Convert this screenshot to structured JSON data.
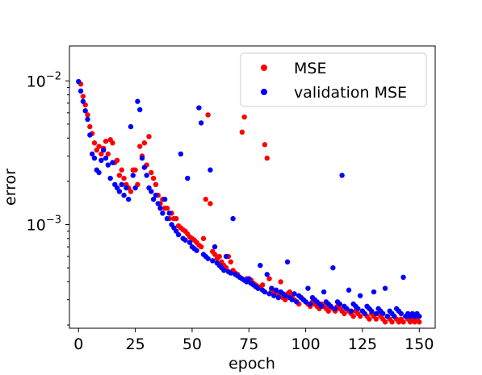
{
  "chart_data": {
    "type": "scatter",
    "xlabel": "epoch",
    "ylabel": "error",
    "xlim": [
      -4,
      157
    ],
    "ylim": [
      0.00019,
      0.0175
    ],
    "yscale": "log",
    "xticks": [
      0,
      25,
      50,
      75,
      100,
      125,
      150
    ],
    "yticks": [
      0.001,
      0.01
    ],
    "ytick_labels": [
      {
        "base": "10",
        "exp": "−3"
      },
      {
        "base": "10",
        "exp": "−2"
      }
    ],
    "grid": false,
    "legend_position": "top-right",
    "series": [
      {
        "name": "MSE",
        "color": "#ff0000",
        "x": [
          1,
          2,
          3,
          4,
          5,
          6,
          7,
          8,
          9,
          10,
          11,
          12,
          13,
          14,
          15,
          16,
          17,
          18,
          19,
          20,
          21,
          22,
          23,
          24,
          25,
          26,
          27,
          28,
          29,
          30,
          31,
          32,
          33,
          34,
          35,
          36,
          37,
          38,
          39,
          40,
          41,
          42,
          43,
          44,
          45,
          46,
          47,
          48,
          49,
          50,
          51,
          52,
          53,
          54,
          55,
          56,
          57,
          58,
          59,
          60,
          61,
          62,
          63,
          64,
          65,
          66,
          67,
          68,
          69,
          70,
          71,
          72,
          73,
          74,
          75,
          76,
          77,
          78,
          79,
          80,
          81,
          82,
          83,
          84,
          85,
          86,
          87,
          88,
          89,
          90,
          91,
          92,
          93,
          94,
          95,
          96,
          97,
          98,
          99,
          100,
          101,
          102,
          103,
          104,
          105,
          106,
          107,
          108,
          109,
          110,
          111,
          112,
          113,
          114,
          115,
          116,
          117,
          118,
          119,
          120,
          121,
          122,
          123,
          124,
          125,
          126,
          127,
          128,
          129,
          130,
          131,
          132,
          133,
          134,
          135,
          136,
          137,
          138,
          139,
          140,
          141,
          142,
          143,
          144,
          145,
          146,
          147,
          148,
          149,
          150
        ],
        "y": [
          0.0095,
          0.0078,
          0.0068,
          0.0058,
          0.0048,
          0.0043,
          0.0037,
          0.0033,
          0.0035,
          0.0031,
          0.0034,
          0.0038,
          0.0031,
          0.0039,
          0.0037,
          0.0027,
          0.0028,
          0.0022,
          0.0024,
          0.0021,
          0.0019,
          0.0018,
          0.0017,
          0.0024,
          0.0024,
          0.0019,
          0.0035,
          0.003,
          0.0037,
          0.0026,
          0.0041,
          0.0023,
          0.0021,
          0.0019,
          0.0016,
          0.0014,
          0.0015,
          0.0013,
          0.0013,
          0.0011,
          0.0012,
          0.0011,
          0.0011,
          0.00098,
          0.00095,
          0.00092,
          0.0009,
          0.00086,
          0.00082,
          0.0008,
          0.00078,
          0.00075,
          0.00072,
          0.0007,
          0.0008,
          0.0015,
          0.0058,
          0.0014,
          0.00065,
          0.00062,
          0.00058,
          0.0006,
          0.00055,
          0.00052,
          0.0005,
          0.0006,
          0.00055,
          0.00048,
          0.00046,
          0.00045,
          0.00043,
          0.0044,
          0.0056,
          0.00042,
          0.0004,
          0.00041,
          0.00039,
          0.00038,
          0.00037,
          0.00036,
          0.00038,
          0.0036,
          0.0029,
          0.00042,
          0.00035,
          0.00034,
          0.00033,
          0.00032,
          0.0004,
          0.00031,
          0.0003,
          0.00033,
          0.00034,
          0.00032,
          0.0003,
          0.00029,
          0.00028,
          0.00031,
          0.0003,
          0.00029,
          0.00028,
          0.00027,
          0.00029,
          0.00028,
          0.00027,
          0.00026,
          0.00028,
          0.00027,
          0.00026,
          0.00025,
          0.00027,
          0.00026,
          0.00025,
          0.00027,
          0.00026,
          0.00025,
          0.00024,
          0.00026,
          0.00025,
          0.00024,
          0.00023,
          0.00025,
          0.00024,
          0.00023,
          0.00025,
          0.00024,
          0.00023,
          0.00022,
          0.00024,
          0.00023,
          0.00022,
          0.00024,
          0.00023,
          0.00022,
          0.00021,
          0.00023,
          0.00022,
          0.00021,
          0.00023,
          0.00022,
          0.00021,
          0.00022,
          0.00021,
          0.00023,
          0.00022,
          0.00021,
          0.00022,
          0.00021,
          0.00022,
          0.00021
        ]
      },
      {
        "name": "validation MSE",
        "color": "#0000ff",
        "x": [
          0,
          1,
          2,
          3,
          4,
          5,
          6,
          7,
          8,
          9,
          10,
          11,
          12,
          13,
          14,
          15,
          16,
          17,
          18,
          19,
          20,
          21,
          22,
          23,
          24,
          25,
          26,
          27,
          28,
          29,
          30,
          31,
          32,
          33,
          34,
          35,
          36,
          37,
          38,
          39,
          40,
          41,
          42,
          43,
          44,
          45,
          46,
          47,
          48,
          49,
          50,
          51,
          52,
          53,
          54,
          55,
          56,
          57,
          58,
          59,
          60,
          61,
          62,
          63,
          64,
          65,
          66,
          67,
          68,
          69,
          70,
          71,
          72,
          73,
          74,
          75,
          76,
          77,
          78,
          79,
          80,
          81,
          82,
          83,
          84,
          85,
          86,
          87,
          88,
          89,
          90,
          91,
          92,
          93,
          94,
          95,
          96,
          97,
          98,
          99,
          100,
          101,
          102,
          103,
          104,
          105,
          106,
          107,
          108,
          109,
          110,
          111,
          112,
          113,
          114,
          115,
          116,
          117,
          118,
          119,
          120,
          121,
          122,
          123,
          124,
          125,
          126,
          127,
          128,
          129,
          130,
          131,
          132,
          133,
          134,
          135,
          136,
          137,
          138,
          139,
          140,
          141,
          142,
          143,
          144,
          145,
          146,
          147,
          148,
          149,
          150
        ],
        "y": [
          0.0099,
          0.0085,
          0.0072,
          0.0062,
          0.0054,
          0.0042,
          0.0031,
          0.0029,
          0.0024,
          0.0023,
          0.0028,
          0.0033,
          0.0029,
          0.0026,
          0.0021,
          0.0027,
          0.0019,
          0.0018,
          0.0017,
          0.0019,
          0.0016,
          0.0018,
          0.0015,
          0.0048,
          0.0022,
          0.0018,
          0.0072,
          0.0063,
          0.0029,
          0.0025,
          0.0022,
          0.0018,
          0.0017,
          0.0015,
          0.0016,
          0.0014,
          0.0013,
          0.0012,
          0.0015,
          0.0011,
          0.0012,
          0.001,
          0.00095,
          0.0009,
          0.00085,
          0.0031,
          0.0008,
          0.00078,
          0.0021,
          0.00075,
          0.0007,
          0.00068,
          0.00066,
          0.0065,
          0.0051,
          0.00062,
          0.0006,
          0.00058,
          0.0024,
          0.00056,
          0.0007,
          0.00054,
          0.00052,
          0.0005,
          0.00048,
          0.0006,
          0.00047,
          0.00046,
          0.0011,
          0.00045,
          0.00044,
          0.00043,
          0.00042,
          0.00041,
          0.0004,
          0.00042,
          0.00039,
          0.00038,
          0.00037,
          0.00036,
          0.00052,
          0.00035,
          0.00034,
          0.00045,
          0.00033,
          0.00036,
          0.00032,
          0.00035,
          0.00031,
          0.00034,
          0.00033,
          0.00032,
          0.00055,
          0.00031,
          0.0003,
          0.00033,
          0.00029,
          0.00032,
          0.00031,
          0.0003,
          0.00029,
          0.00036,
          0.00028,
          0.00031,
          0.0003,
          0.00029,
          0.00028,
          0.00027,
          0.00034,
          0.00029,
          0.00028,
          0.00027,
          0.0005,
          0.00026,
          0.00029,
          0.00028,
          0.0022,
          0.00027,
          0.00026,
          0.00035,
          0.00025,
          0.00028,
          0.00027,
          0.00026,
          0.00032,
          0.00025,
          0.00024,
          0.00027,
          0.00026,
          0.00025,
          0.00034,
          0.00024,
          0.00026,
          0.00025,
          0.00024,
          0.00036,
          0.00023,
          0.00025,
          0.00024,
          0.00023,
          0.00026,
          0.00025,
          0.00024,
          0.00043,
          0.00023,
          0.00024,
          0.00023,
          0.00024,
          0.00023,
          0.00024,
          0.00023
        ]
      }
    ]
  }
}
